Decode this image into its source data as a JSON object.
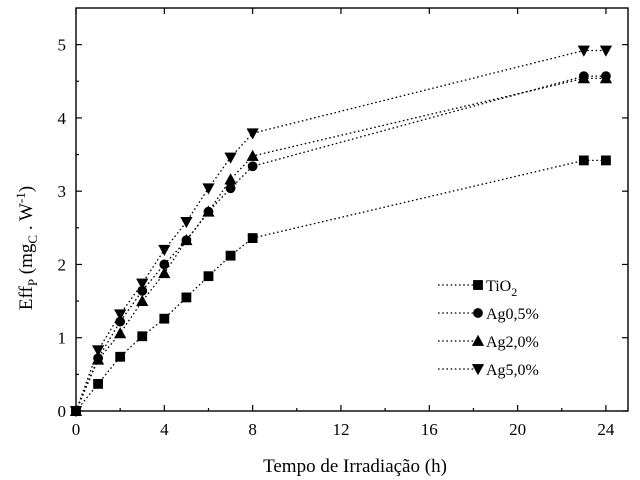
{
  "chart_data": {
    "type": "line",
    "title": "",
    "xlabel": "Tempo de Irradiação (h)",
    "ylabel": {
      "base": "Eff",
      "base_sub": "P",
      "open": " (mg",
      "open_sub": "C",
      "unit": " . W",
      "unit_sup": "-1",
      "close": ")"
    },
    "xlim": [
      0,
      25
    ],
    "ylim": [
      0,
      5.5
    ],
    "xticks": [
      0,
      4,
      8,
      12,
      16,
      20,
      24
    ],
    "yticks": [
      0,
      1,
      2,
      3,
      4,
      5
    ],
    "grid": false,
    "legend_position": "lower-right",
    "series": [
      {
        "name": "TiO",
        "name_sub": "2",
        "marker": "square",
        "x": [
          0,
          1,
          2,
          3,
          4,
          5,
          6,
          7,
          8,
          23,
          24
        ],
        "y": [
          0,
          0.37,
          0.74,
          1.02,
          1.26,
          1.55,
          1.84,
          2.12,
          2.36,
          3.42,
          3.42
        ]
      },
      {
        "name": "Ag0,5%",
        "name_sub": "",
        "marker": "circle",
        "x": [
          0,
          1,
          2,
          3,
          4,
          5,
          6,
          7,
          8,
          23,
          24
        ],
        "y": [
          0,
          0.72,
          1.22,
          1.64,
          2.0,
          2.33,
          2.72,
          3.04,
          3.34,
          4.57,
          4.57
        ]
      },
      {
        "name": "Ag2,0%",
        "name_sub": "",
        "marker": "triangle-up",
        "x": [
          0,
          1,
          2,
          3,
          4,
          5,
          6,
          7,
          8,
          23,
          24
        ],
        "y": [
          0,
          0.7,
          1.06,
          1.5,
          1.88,
          2.33,
          2.72,
          3.16,
          3.48,
          4.54,
          4.54
        ]
      },
      {
        "name": "Ag5,0%",
        "name_sub": "",
        "marker": "triangle-down",
        "x": [
          0,
          1,
          2,
          3,
          4,
          5,
          6,
          7,
          8,
          23,
          24
        ],
        "y": [
          0,
          0.83,
          1.32,
          1.74,
          2.2,
          2.58,
          3.04,
          3.46,
          3.79,
          4.92,
          4.92
        ]
      }
    ]
  }
}
